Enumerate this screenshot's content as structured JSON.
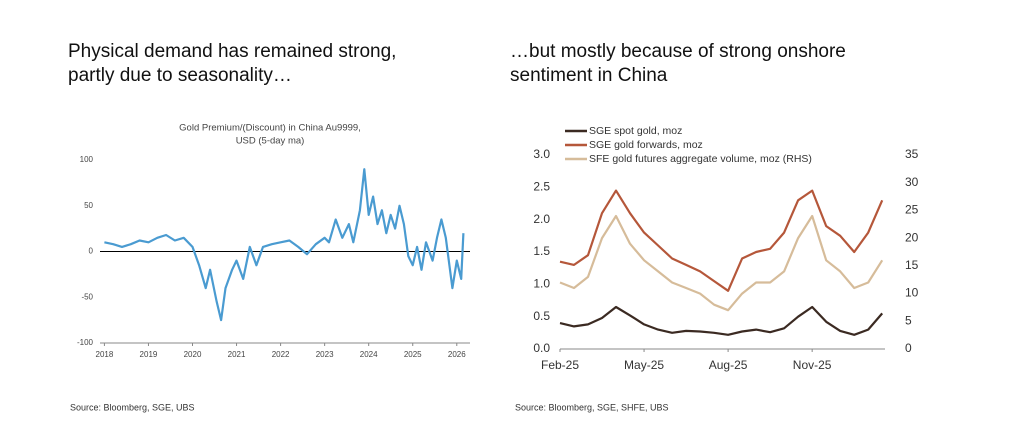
{
  "chart_data": [
    {
      "type": "line",
      "headline": [
        "Physical demand has remained strong,",
        "partly due to seasonality…"
      ],
      "title": [
        "Gold Premium/(Discount)  in China Au9999,",
        "USD (5-day ma)"
      ],
      "source": "Source: Bloomberg, SGE, UBS",
      "xlim": [
        2017.9,
        2026.3
      ],
      "xticks": [
        2018,
        2019,
        2020,
        2021,
        2022,
        2023,
        2024,
        2025,
        2026
      ],
      "ylim": [
        -100,
        100
      ],
      "yticks": [
        100,
        50,
        0,
        -50,
        -100
      ],
      "zero_line": true,
      "x": [
        2018.0,
        2018.2,
        2018.4,
        2018.6,
        2018.8,
        2019.0,
        2019.2,
        2019.4,
        2019.6,
        2019.8,
        2020.0,
        2020.15,
        2020.3,
        2020.4,
        2020.55,
        2020.65,
        2020.75,
        2020.9,
        2021.0,
        2021.15,
        2021.3,
        2021.45,
        2021.6,
        2021.8,
        2022.0,
        2022.2,
        2022.4,
        2022.6,
        2022.8,
        2023.0,
        2023.1,
        2023.25,
        2023.4,
        2023.55,
        2023.65,
        2023.8,
        2023.9,
        2024.0,
        2024.1,
        2024.2,
        2024.3,
        2024.4,
        2024.5,
        2024.6,
        2024.7,
        2024.8,
        2024.9,
        2025.0,
        2025.1,
        2025.2,
        2025.3,
        2025.45,
        2025.55,
        2025.65,
        2025.75,
        2025.9,
        2026.0,
        2026.1,
        2026.15
      ],
      "series": [
        {
          "color": "#4a9bd1",
          "values": [
            10,
            8,
            5,
            8,
            12,
            10,
            15,
            18,
            12,
            15,
            5,
            -15,
            -40,
            -20,
            -55,
            -75,
            -40,
            -20,
            -10,
            -30,
            5,
            -15,
            5,
            8,
            10,
            12,
            5,
            -3,
            8,
            15,
            10,
            35,
            15,
            30,
            10,
            45,
            90,
            40,
            60,
            30,
            45,
            20,
            40,
            25,
            50,
            30,
            -5,
            -15,
            5,
            -20,
            10,
            -10,
            15,
            35,
            15,
            -40,
            -10,
            -30,
            20
          ]
        }
      ]
    },
    {
      "type": "line",
      "headline": [
        "…but mostly because of strong onshore",
        "sentiment in China"
      ],
      "source": "Source: Bloomberg, SGE, SHFE, UBS",
      "xlim": [
        0,
        11.6
      ],
      "xticks": [
        {
          "value": 0,
          "label": "Feb-25"
        },
        {
          "value": 3,
          "label": "May-25"
        },
        {
          "value": 6,
          "label": "Aug-25"
        },
        {
          "value": 9,
          "label": "Nov-25"
        }
      ],
      "ylim": [
        0,
        3
      ],
      "yticks": [
        {
          "value": 3,
          "label": "3.0"
        },
        {
          "value": 2.5,
          "label": "2.5"
        },
        {
          "value": 2,
          "label": "2.0"
        },
        {
          "value": 1.5,
          "label": "1.5"
        },
        {
          "value": 1,
          "label": "1.0"
        },
        {
          "value": 0.5,
          "label": "0.5"
        },
        {
          "value": 0,
          "label": "0.0"
        }
      ],
      "y2lim": [
        0,
        35
      ],
      "y2ticks": [
        35,
        30,
        25,
        20,
        15,
        10,
        5,
        0
      ],
      "x": [
        0,
        0.5,
        1,
        1.5,
        2,
        2.5,
        3,
        3.5,
        4,
        4.5,
        5,
        5.5,
        6,
        6.5,
        7,
        7.5,
        8,
        8.5,
        9,
        9.5,
        10,
        10.5,
        11,
        11.5
      ],
      "series": [
        {
          "name": "SGE spot gold, moz",
          "color": "#3b2a22",
          "values": [
            0.4,
            0.35,
            0.38,
            0.48,
            0.65,
            0.52,
            0.38,
            0.3,
            0.25,
            0.28,
            0.27,
            0.25,
            0.22,
            0.27,
            0.3,
            0.26,
            0.32,
            0.5,
            0.65,
            0.42,
            0.28,
            0.22,
            0.3,
            0.55
          ]
        },
        {
          "name": "SGE gold forwards, moz",
          "color": "#b5573a",
          "values": [
            1.35,
            1.3,
            1.45,
            2.1,
            2.45,
            2.1,
            1.8,
            1.6,
            1.4,
            1.3,
            1.2,
            1.05,
            0.9,
            1.4,
            1.5,
            1.55,
            1.8,
            2.3,
            2.45,
            1.9,
            1.75,
            1.5,
            1.8,
            2.3
          ]
        },
        {
          "name": "SFE gold futures aggregate volume, moz (RHS)",
          "color": "#d6bc9a",
          "axis": "y2",
          "values": [
            12,
            11,
            13,
            20,
            24,
            19,
            16,
            14,
            12,
            11,
            10,
            8,
            7,
            10,
            12,
            12,
            14,
            20,
            24,
            16,
            14,
            11,
            12,
            16
          ]
        }
      ]
    }
  ]
}
